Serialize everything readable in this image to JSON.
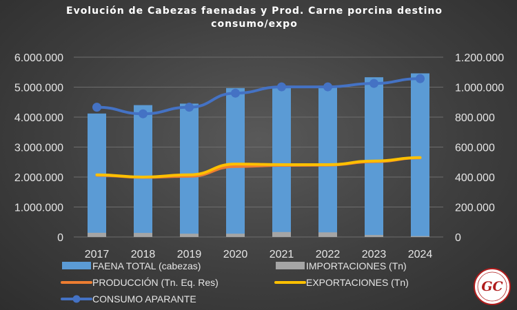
{
  "chart_data": {
    "type": "bar",
    "title": "Evolución de Cabezas faenadas y Prod. Carne porcina destino consumo/expo",
    "title_lines": [
      "Evolución de Cabezas faenadas y Prod. Carne porcina destino",
      "consumo/expo"
    ],
    "categories": [
      "2017",
      "2018",
      "2019",
      "2020",
      "2021",
      "2022",
      "2023",
      "2024"
    ],
    "y_left": {
      "ylim": [
        0,
        6000000
      ],
      "ticks": [
        0,
        1000000,
        2000000,
        3000000,
        4000000,
        5000000,
        6000000
      ],
      "tick_labels": [
        "0",
        "1.000.000",
        "2.000.000",
        "3.000.000",
        "4.000.000",
        "5.000.000",
        "6.000.000"
      ]
    },
    "y_right": {
      "ylim": [
        0,
        1200000
      ],
      "ticks": [
        0,
        200000,
        400000,
        600000,
        800000,
        1000000,
        1200000
      ],
      "tick_labels": [
        "0",
        "200.000",
        "400.000",
        "600.000",
        "800.000",
        "1.000.000",
        "1.200.000"
      ]
    },
    "grid": true,
    "legend_position": "bottom",
    "series": [
      {
        "name": "FAENA TOTAL (cabezas)",
        "type": "bar",
        "axis": "left",
        "color": "#5b9bd5",
        "values": [
          4120000,
          4400000,
          4450000,
          4970000,
          5000000,
          4990000,
          5330000,
          5460000
        ]
      },
      {
        "name": "IMPORTACIONES (Tn)",
        "type": "bar",
        "axis": "right",
        "color": "#a5a5a5",
        "values": [
          28000,
          27000,
          22000,
          22000,
          33000,
          31000,
          13000,
          6000
        ]
      },
      {
        "name": "PRODUCCIÓN (Tn. Eq. Res)",
        "type": "line",
        "axis": "right",
        "color": "#ed7d31",
        "values": [
          412000,
          398000,
          405000,
          470000,
          478000,
          480000,
          503000,
          528000
        ]
      },
      {
        "name": "EXPORTACIONES (Tn)",
        "type": "line",
        "axis": "right",
        "color": "#ffc000",
        "values": [
          415000,
          400000,
          415000,
          487000,
          483000,
          483000,
          507000,
          530000
        ]
      },
      {
        "name": "CONSUMO APARANTE",
        "type": "line",
        "axis": "right",
        "color": "#4472c4",
        "values": [
          866000,
          822000,
          866000,
          960000,
          1002000,
          1002000,
          1025000,
          1057000
        ]
      }
    ]
  },
  "logo": {
    "text": "GC",
    "color": "#b01c1c"
  }
}
